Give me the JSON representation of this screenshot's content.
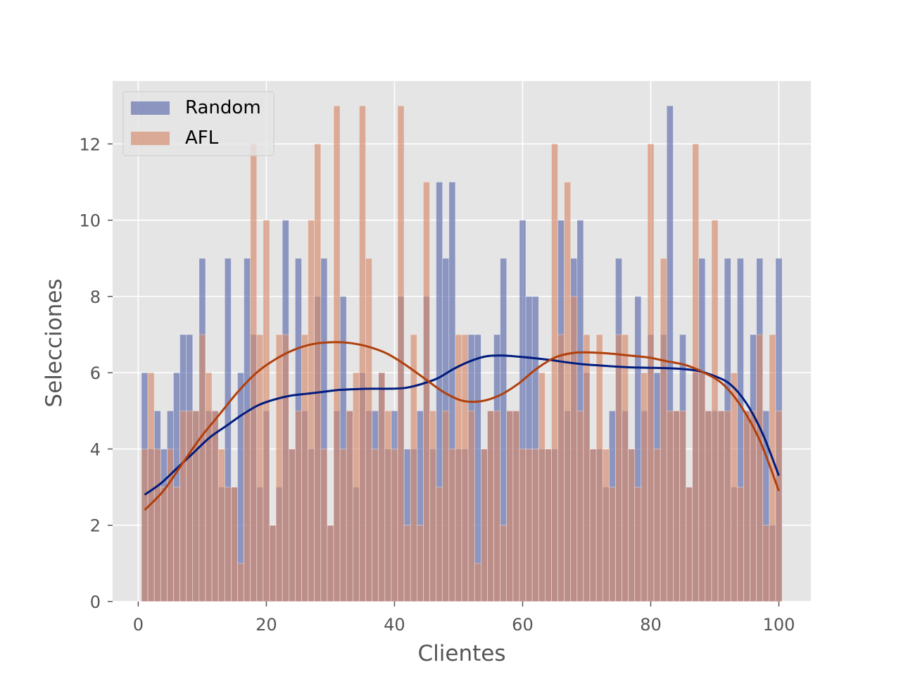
{
  "chart_data": {
    "type": "bar",
    "xlabel": "Clientes",
    "ylabel": "Selecciones",
    "xlim": [
      -4,
      105
    ],
    "ylim": [
      0,
      13.65
    ],
    "x_ticks": [
      0,
      20,
      40,
      60,
      80,
      100
    ],
    "y_ticks": [
      0,
      2,
      4,
      6,
      8,
      10,
      12
    ],
    "grid": true,
    "legend_position": "top-left",
    "x": [
      1,
      2,
      3,
      4,
      5,
      6,
      7,
      8,
      9,
      10,
      11,
      12,
      13,
      14,
      15,
      16,
      17,
      18,
      19,
      20,
      21,
      22,
      23,
      24,
      25,
      26,
      27,
      28,
      29,
      30,
      31,
      32,
      33,
      34,
      35,
      36,
      37,
      38,
      39,
      40,
      41,
      42,
      43,
      44,
      45,
      46,
      47,
      48,
      49,
      50,
      51,
      52,
      53,
      54,
      55,
      56,
      57,
      58,
      59,
      60,
      61,
      62,
      63,
      64,
      65,
      66,
      67,
      68,
      69,
      70,
      71,
      72,
      73,
      74,
      75,
      76,
      77,
      78,
      79,
      80,
      81,
      82,
      83,
      84,
      85,
      86,
      87,
      88,
      89,
      90,
      91,
      92,
      93,
      94,
      95,
      96,
      97,
      98,
      99,
      100
    ],
    "series": [
      {
        "name": "Random",
        "color": "#5a6aac",
        "kde_color": "#001c7f",
        "values": [
          6,
          4,
          5,
          4,
          5,
          6,
          7,
          7,
          5,
          9,
          5,
          5,
          3,
          9,
          3,
          6,
          9,
          7,
          3,
          5,
          2,
          3,
          10,
          4,
          9,
          5,
          4,
          8,
          9,
          2,
          5,
          8,
          5,
          3,
          6,
          5,
          5,
          6,
          4,
          5,
          8,
          4,
          4,
          5,
          8,
          4,
          11,
          9,
          11,
          4,
          4,
          7,
          7,
          4,
          5,
          7,
          9,
          5,
          5,
          10,
          8,
          8,
          4,
          4,
          4,
          10,
          5,
          9,
          10,
          6,
          4,
          4,
          3,
          5,
          9,
          5,
          4,
          8,
          5,
          7,
          6,
          7,
          13,
          5,
          7,
          3,
          6,
          9,
          5,
          5,
          5,
          9,
          3,
          9,
          5,
          7,
          9,
          5,
          2,
          9
        ],
        "kde": [
          2.8,
          3.1,
          3.5,
          3.9,
          4.3,
          4.6,
          4.9,
          5.15,
          5.3,
          5.4,
          5.45,
          5.5,
          5.55,
          5.57,
          5.58,
          5.58,
          5.6,
          5.7,
          5.85,
          6.1,
          6.3,
          6.43,
          6.45,
          6.42,
          6.38,
          6.33,
          6.27,
          6.22,
          6.19,
          6.16,
          6.14,
          6.13,
          6.12,
          6.1,
          6.05,
          5.92,
          5.7,
          5.2,
          4.4,
          3.3
        ]
      },
      {
        "name": "AFL",
        "color": "#d68b6b",
        "kde_color": "#b1400d",
        "values": [
          4,
          6,
          4,
          3,
          4,
          3,
          5,
          5,
          5,
          7,
          6,
          5,
          4,
          3,
          3,
          1,
          5,
          12,
          7,
          10,
          2,
          7,
          7,
          4,
          5,
          7,
          10,
          12,
          4,
          2,
          13,
          4,
          5,
          6,
          13,
          9,
          4,
          6,
          5,
          4,
          13,
          2,
          7,
          2,
          11,
          5,
          3,
          5,
          4,
          7,
          7,
          5,
          1,
          4,
          5,
          5,
          2,
          5,
          5,
          4,
          4,
          4,
          6,
          4,
          12,
          7,
          11,
          8,
          5,
          7,
          4,
          7,
          4,
          3,
          7,
          7,
          4,
          3,
          6,
          12,
          4,
          9,
          5,
          5,
          5,
          3,
          12,
          6,
          5,
          10,
          5,
          5,
          6,
          3,
          5,
          5,
          7,
          2,
          7,
          5
        ],
        "kde": [
          2.4,
          2.9,
          3.6,
          4.3,
          4.9,
          5.5,
          6.0,
          6.35,
          6.6,
          6.75,
          6.8,
          6.78,
          6.68,
          6.5,
          6.2,
          5.85,
          5.5,
          5.27,
          5.25,
          5.4,
          5.7,
          6.1,
          6.4,
          6.52,
          6.53,
          6.5,
          6.45,
          6.4,
          6.3,
          6.2,
          6.0,
          5.7,
          5.1,
          4.2,
          2.9
        ]
      }
    ]
  }
}
